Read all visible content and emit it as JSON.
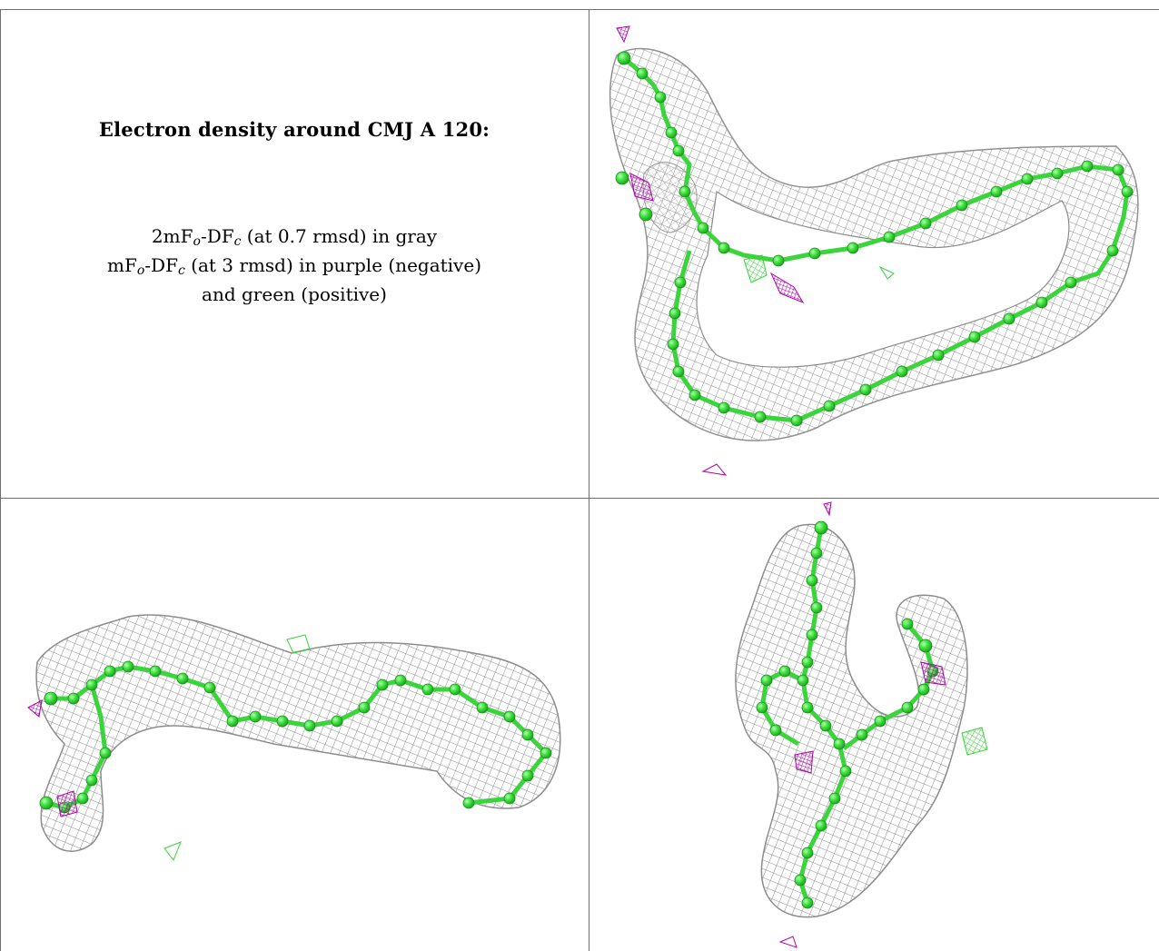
{
  "caption": {
    "title": "Electron density around CMJ A 120:",
    "line1": {
      "pre": "2mF",
      "sub1": "o",
      "mid": "-DF",
      "sub2": "c",
      "post": " (at 0.7 rmsd) in gray"
    },
    "line2": {
      "pre": "mF",
      "sub1": "o",
      "mid": "-DF",
      "sub2": "c",
      "post": " (at 3 rmsd) in purple (negative)"
    },
    "line3": "and green (positive)"
  },
  "colors": {
    "mesh_2fofc": "#8c8c8c",
    "positive_difference": "#3bd83b",
    "negative_difference": "#b000b0",
    "atoms": "#4ce84c",
    "bonds": "#3cd43c",
    "gridline": "#6e6e6e"
  },
  "icons": {
    "mesh": "electron-density-mesh",
    "model": "ball-and-stick-model"
  }
}
